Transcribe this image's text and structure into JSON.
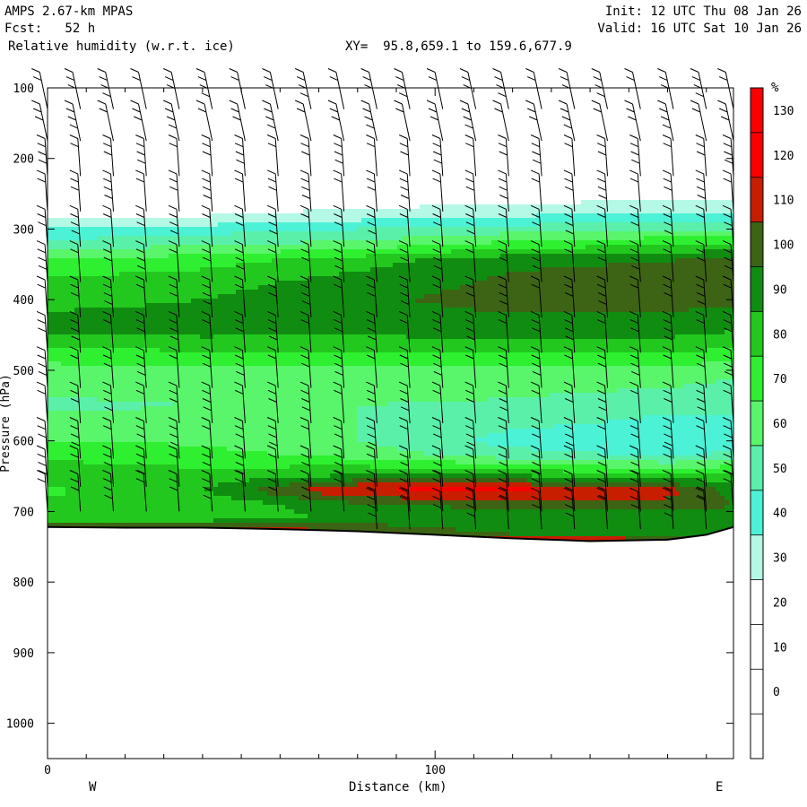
{
  "header": {
    "model": "AMPS 2.67-km MPAS",
    "init": "Init: 12 UTC Thu 08 Jan 26",
    "fcst": "Fcst:   52 h",
    "valid": "Valid: 16 UTC Sat 10 Jan 26",
    "field": "Relative humidity (w.r.t. ice)",
    "xy": "XY=  95.8,659.1 to 159.6,677.9"
  },
  "chart_data": {
    "type": "heatmap",
    "title": "Relative humidity (w.r.t. ice)",
    "xlabel": "Distance (km)",
    "ylabel": "Pressure (hPa)",
    "xlim": [
      0,
      177
    ],
    "ylim": [
      1050,
      100
    ],
    "x_ticks": [
      0,
      100
    ],
    "y_ticks": [
      100,
      200,
      300,
      400,
      500,
      600,
      700,
      800,
      900,
      1000
    ],
    "left_label": "W",
    "right_label": "E",
    "colorbar": {
      "unit": "%",
      "ticks": [
        0,
        10,
        20,
        30,
        40,
        50,
        60,
        70,
        80,
        90,
        100,
        110,
        120,
        130
      ],
      "bins": [
        {
          "from": -10,
          "to": 30,
          "color": "#ffffff"
        },
        {
          "from": 30,
          "to": 40,
          "color": "#b4f8e6"
        },
        {
          "from": 40,
          "to": 50,
          "color": "#4cf2d6"
        },
        {
          "from": 50,
          "to": 60,
          "color": "#5af0aa"
        },
        {
          "from": 60,
          "to": 70,
          "color": "#59f56a"
        },
        {
          "from": 70,
          "to": 80,
          "color": "#2ef030"
        },
        {
          "from": 80,
          "to": 90,
          "color": "#22c81e"
        },
        {
          "from": 90,
          "to": 100,
          "color": "#108c10"
        },
        {
          "from": 100,
          "to": 110,
          "color": "#3c6414"
        },
        {
          "from": 110,
          "to": 120,
          "color": "#c81e00"
        },
        {
          "from": 120,
          "to": 140,
          "color": "#fa0000"
        }
      ]
    },
    "rh_field": {
      "pressure_levels": [
        100,
        250,
        285,
        300,
        320,
        345,
        375,
        400,
        440,
        465,
        500,
        550,
        600,
        620,
        650,
        670,
        690,
        710,
        730,
        745
      ],
      "x_nodes": [
        0,
        40,
        80,
        120,
        160,
        177
      ],
      "values": [
        [
          5,
          5,
          5,
          5,
          5,
          5
        ],
        [
          10,
          12,
          18,
          22,
          25,
          26
        ],
        [
          28,
          32,
          38,
          42,
          44,
          44
        ],
        [
          42,
          45,
          50,
          55,
          58,
          60
        ],
        [
          52,
          58,
          62,
          72,
          78,
          80
        ],
        [
          72,
          76,
          86,
          98,
          100,
          104
        ],
        [
          82,
          86,
          94,
          102,
          104,
          104
        ],
        [
          86,
          90,
          98,
          104,
          104,
          102
        ],
        [
          96,
          96,
          94,
          96,
          95,
          92
        ],
        [
          80,
          84,
          85,
          86,
          86,
          82
        ],
        [
          66,
          68,
          68,
          68,
          68,
          62
        ],
        [
          58,
          60,
          60,
          58,
          52,
          52
        ],
        [
          70,
          68,
          60,
          46,
          44,
          46
        ],
        [
          78,
          74,
          66,
          54,
          48,
          52
        ],
        [
          86,
          84,
          92,
          92,
          82,
          86
        ],
        [
          78,
          90,
          122,
          124,
          115,
          96
        ],
        [
          82,
          82,
          98,
          104,
          106,
          100
        ],
        [
          80,
          84,
          92,
          94,
          94,
          96
        ],
        [
          126,
          124,
          112,
          96,
          96,
          96
        ],
        [
          126,
          126,
          126,
          126,
          120,
          116
        ]
      ]
    },
    "terrain_pressure": {
      "x": [
        0,
        20,
        40,
        60,
        80,
        100,
        120,
        140,
        160,
        170,
        177
      ],
      "p": [
        722,
        723,
        723,
        725,
        728,
        733,
        738,
        742,
        740,
        733,
        722
      ]
    },
    "wind_barb_columns_km": [
      0,
      8.5,
      17,
      25.5,
      34,
      42.5,
      51,
      59.5,
      68,
      76.5,
      85,
      93.5,
      102,
      110.5,
      119,
      127.5,
      136,
      144.5,
      153,
      161.5,
      170,
      177
    ],
    "wind_barb_levels_hpa": [
      130,
      175,
      225,
      275,
      325,
      375,
      425,
      475,
      525,
      575,
      625,
      665,
      700,
      725
    ]
  }
}
